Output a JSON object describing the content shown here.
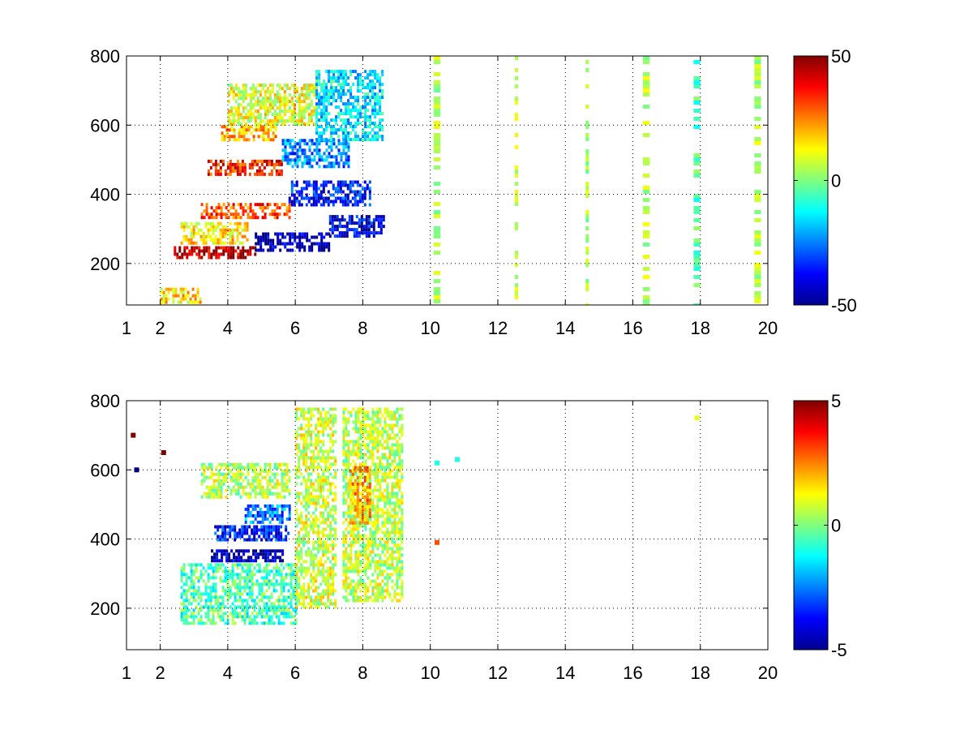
{
  "chart_data": [
    {
      "type": "heatmap",
      "title": "",
      "xlabel": "",
      "ylabel": "",
      "xlim": [
        1,
        20
      ],
      "ylim": [
        80,
        800
      ],
      "x_ticks": [
        {
          "value": 1,
          "label": "1"
        },
        {
          "value": 2,
          "label": "2"
        },
        {
          "value": 4,
          "label": "4"
        },
        {
          "value": 6,
          "label": "6"
        },
        {
          "value": 8,
          "label": "8"
        },
        {
          "value": 10,
          "label": "10"
        },
        {
          "value": 12,
          "label": "12"
        },
        {
          "value": 14,
          "label": "14"
        },
        {
          "value": 16,
          "label": "16"
        },
        {
          "value": 18,
          "label": "18"
        },
        {
          "value": 20,
          "label": "20"
        }
      ],
      "y_ticks": [
        {
          "value": 200,
          "label": "200"
        },
        {
          "value": 400,
          "label": "400"
        },
        {
          "value": 600,
          "label": "600"
        },
        {
          "value": 800,
          "label": "800"
        }
      ],
      "grid": true,
      "colormap": "jet",
      "colorbar": {
        "range": [
          -50,
          50
        ],
        "ticks": [
          {
            "value": 50,
            "label": "50"
          },
          {
            "value": 0,
            "label": "0"
          },
          {
            "value": -50,
            "label": "-50"
          }
        ],
        "placement": "right"
      },
      "features": [
        {
          "x": [
            2.4,
            4.8
          ],
          "y": [
            215,
            250
          ],
          "value": 45
        },
        {
          "x": [
            4.8,
            7.0
          ],
          "y": [
            235,
            290
          ],
          "value": -45
        },
        {
          "x": [
            7.0,
            8.6
          ],
          "y": [
            280,
            340
          ],
          "value": -40
        },
        {
          "x": [
            3.2,
            5.8
          ],
          "y": [
            330,
            375
          ],
          "value": 30
        },
        {
          "x": [
            5.8,
            8.2
          ],
          "y": [
            370,
            440
          ],
          "value": -35
        },
        {
          "x": [
            3.4,
            5.6
          ],
          "y": [
            455,
            500
          ],
          "value": 35
        },
        {
          "x": [
            5.6,
            7.6
          ],
          "y": [
            480,
            560
          ],
          "value": -25
        },
        {
          "x": [
            3.8,
            5.4
          ],
          "y": [
            560,
            600
          ],
          "value": 20
        },
        {
          "x": [
            2.6,
            4.6
          ],
          "y": [
            260,
            320
          ],
          "value": 15
        },
        {
          "x": [
            4.0,
            6.6
          ],
          "y": [
            600,
            720
          ],
          "value": 10
        },
        {
          "x": [
            6.6,
            8.6
          ],
          "y": [
            560,
            760
          ],
          "value": -15
        },
        {
          "x": [
            2.0,
            3.2
          ],
          "y": [
            90,
            130
          ],
          "value": 15
        }
      ],
      "vertical_bands": [
        {
          "x": [
            10.1,
            10.3
          ],
          "value": 5
        },
        {
          "x": [
            12.5,
            12.6
          ],
          "value": 8
        },
        {
          "x": [
            14.6,
            14.7
          ],
          "value": 4
        },
        {
          "x": [
            16.3,
            16.5
          ],
          "value": 6
        },
        {
          "x": [
            17.8,
            18.0
          ],
          "value": -5
        },
        {
          "x": [
            19.6,
            19.8
          ],
          "value": 5
        }
      ]
    },
    {
      "type": "heatmap",
      "title": "",
      "xlabel": "",
      "ylabel": "",
      "xlim": [
        1,
        20
      ],
      "ylim": [
        80,
        800
      ],
      "x_ticks": [
        {
          "value": 1,
          "label": "1"
        },
        {
          "value": 2,
          "label": "2"
        },
        {
          "value": 4,
          "label": "4"
        },
        {
          "value": 6,
          "label": "6"
        },
        {
          "value": 8,
          "label": "8"
        },
        {
          "value": 10,
          "label": "10"
        },
        {
          "value": 12,
          "label": "12"
        },
        {
          "value": 14,
          "label": "14"
        },
        {
          "value": 16,
          "label": "16"
        },
        {
          "value": 18,
          "label": "18"
        },
        {
          "value": 20,
          "label": "20"
        }
      ],
      "y_ticks": [
        {
          "value": 200,
          "label": "200"
        },
        {
          "value": 400,
          "label": "400"
        },
        {
          "value": 600,
          "label": "600"
        },
        {
          "value": 800,
          "label": "800"
        }
      ],
      "grid": true,
      "colormap": "jet",
      "colorbar": {
        "range": [
          -5,
          5
        ],
        "ticks": [
          {
            "value": 5,
            "label": "5"
          },
          {
            "value": 0,
            "label": "0"
          },
          {
            "value": -5,
            "label": "-5"
          }
        ],
        "placement": "right"
      },
      "features": [
        {
          "x": [
            3.5,
            5.6
          ],
          "y": [
            340,
            370
          ],
          "value": -4.5
        },
        {
          "x": [
            3.6,
            5.8
          ],
          "y": [
            400,
            440
          ],
          "value": -3.5
        },
        {
          "x": [
            4.5,
            5.8
          ],
          "y": [
            450,
            500
          ],
          "value": -2.5
        },
        {
          "x": [
            3.2,
            5.8
          ],
          "y": [
            520,
            620
          ],
          "value": 0.5
        },
        {
          "x": [
            2.6,
            6.0
          ],
          "y": [
            160,
            330
          ],
          "value": -0.5
        },
        {
          "x": [
            6.0,
            7.2
          ],
          "y": [
            200,
            780
          ],
          "value": 0.8
        },
        {
          "x": [
            7.4,
            9.2
          ],
          "y": [
            220,
            780
          ],
          "value": 0.6
        },
        {
          "x": [
            7.6,
            8.2
          ],
          "y": [
            450,
            620
          ],
          "value": 2.2
        }
      ],
      "points": [
        {
          "x": 10.2,
          "y": 620,
          "value": -1.0
        },
        {
          "x": 10.8,
          "y": 630,
          "value": -1.0
        },
        {
          "x": 10.2,
          "y": 390,
          "value": 3.0
        },
        {
          "x": 17.9,
          "y": 750,
          "value": 1.0
        },
        {
          "x": 1.2,
          "y": 700,
          "value": 5.0
        },
        {
          "x": 1.3,
          "y": 600,
          "value": -5.0
        },
        {
          "x": 2.1,
          "y": 650,
          "value": 5.0
        }
      ]
    }
  ]
}
